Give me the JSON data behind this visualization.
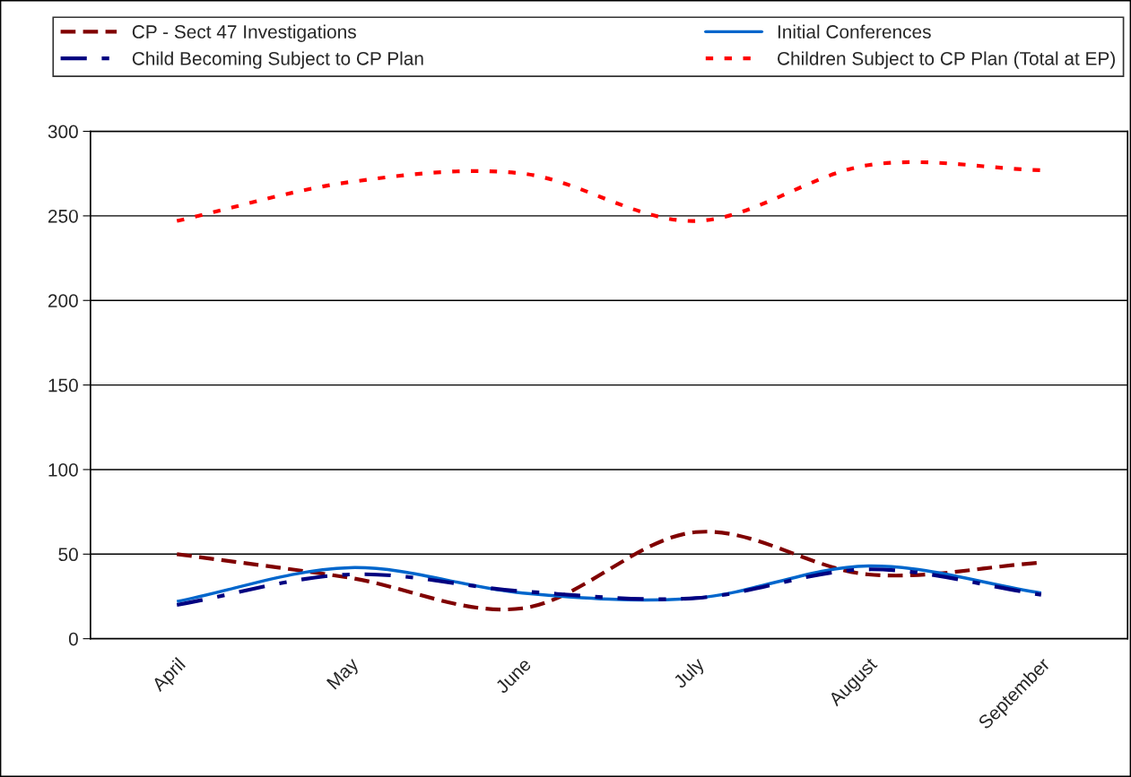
{
  "chart_data": {
    "type": "line",
    "categories": [
      "April",
      "May",
      "June",
      "July",
      "August",
      "September"
    ],
    "series": [
      {
        "name": "CP - Sect 47 Investigations",
        "color": "#800000",
        "line_style": "dashed",
        "values": [
          50,
          36,
          18,
          63,
          38,
          45
        ]
      },
      {
        "name": "Initial Conferences",
        "color": "#0066cc",
        "line_style": "solid",
        "values": [
          22,
          42,
          27,
          24,
          43,
          27
        ]
      },
      {
        "name": "Child Becoming Subject to CP Plan",
        "color": "#000080",
        "line_style": "dashdot",
        "values": [
          20,
          38,
          28,
          24,
          41,
          26
        ]
      },
      {
        "name": "Children Subject to CP Plan (Total at EP)",
        "color": "#ff0000",
        "line_style": "dotted",
        "values": [
          247,
          270,
          275,
          247,
          280,
          277
        ]
      }
    ],
    "ylim": [
      0,
      300
    ],
    "yticks": [
      0,
      50,
      100,
      150,
      200,
      250,
      300
    ],
    "grid": "y",
    "legend": "top",
    "marker": "none"
  }
}
